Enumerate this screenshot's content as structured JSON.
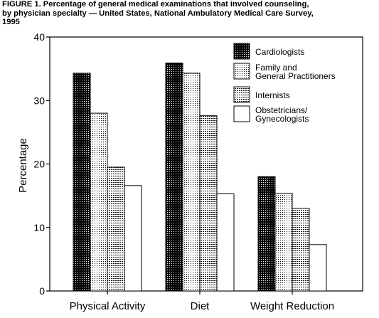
{
  "figure": {
    "title_lines": [
      "FIGURE 1.  Percentage of general medical examinations that involved counseling,",
      "by physician specialty — United States, National Ambulatory Medical Care Survey,",
      "1995"
    ]
  },
  "chart_data": {
    "type": "bar",
    "title": "Percentage of general medical examinations that involved counseling, by physician specialty — United States, National Ambulatory Medical Care Survey, 1995",
    "xlabel": "",
    "ylabel": "Percentage",
    "ylim": [
      0,
      40
    ],
    "yticks": [
      0,
      10,
      20,
      30,
      40
    ],
    "categories": [
      "Physical Activity",
      "Diet",
      "Weight Reduction"
    ],
    "series": [
      {
        "name": "Cardiologists",
        "legend_lines": [
          "Cardiologists"
        ],
        "pattern": "dense-dots",
        "values": [
          34.3,
          35.9,
          18.0
        ]
      },
      {
        "name": "Family and General Practitioners",
        "legend_lines": [
          "Family and",
          "General Practitioners"
        ],
        "pattern": "sparse-dots",
        "values": [
          28.0,
          34.3,
          15.4
        ]
      },
      {
        "name": "Internists",
        "legend_lines": [
          "Internists"
        ],
        "pattern": "horizontal-dashes",
        "values": [
          19.5,
          27.6,
          13.0
        ]
      },
      {
        "name": "Obstetricians/Gynecologists",
        "legend_lines": [
          "Obstetricians/",
          "Gynecologists"
        ],
        "pattern": "white",
        "values": [
          16.6,
          15.3,
          7.3
        ]
      }
    ],
    "legend_position": "top-right",
    "grid": false
  }
}
